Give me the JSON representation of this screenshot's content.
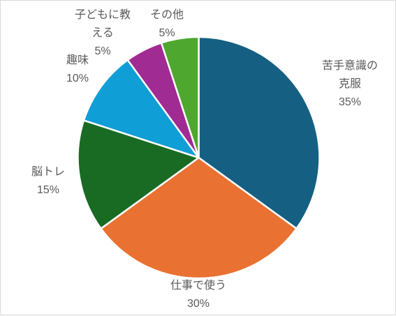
{
  "chart_data": {
    "type": "pie",
    "title": "",
    "slices": [
      {
        "label_lines": [
          "苦手意識の",
          "克服"
        ],
        "percent_label": "35%",
        "value": 35,
        "color": "#156082"
      },
      {
        "label_lines": [
          "仕事で使う"
        ],
        "percent_label": "30%",
        "value": 30,
        "color": "#e97132"
      },
      {
        "label_lines": [
          "脳トレ"
        ],
        "percent_label": "15%",
        "value": 15,
        "color": "#196b24"
      },
      {
        "label_lines": [
          "趣味"
        ],
        "percent_label": "10%",
        "value": 10,
        "color": "#0f9ed5"
      },
      {
        "label_lines": [
          "子どもに教",
          "える"
        ],
        "percent_label": "5%",
        "value": 5,
        "color": "#a02b93"
      },
      {
        "label_lines": [
          "その他"
        ],
        "percent_label": "5%",
        "value": 5,
        "color": "#4ea72e"
      }
    ],
    "start_angle_deg": 0,
    "direction": "clockwise",
    "legend": "none"
  }
}
